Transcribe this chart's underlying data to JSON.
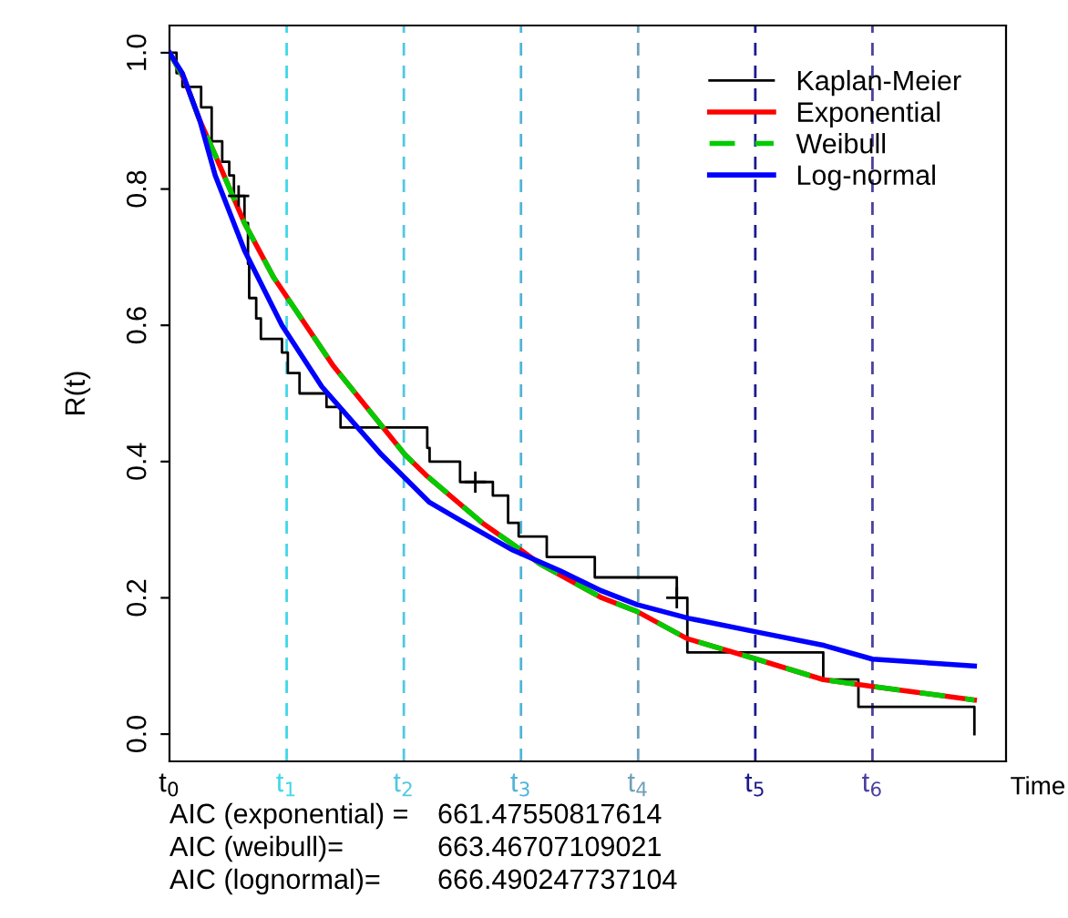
{
  "chart_data": {
    "type": "line",
    "ylabel": "R(t)",
    "xlabel": "Time",
    "xlim": [
      0,
      7.14
    ],
    "ylim": [
      -0.04,
      1.04
    ],
    "xticks": [
      {
        "value": 0,
        "label": "t$_{0}$"
      },
      {
        "value": 1,
        "label": "t$_{1}$"
      },
      {
        "value": 2,
        "label": "t$_{2}$"
      },
      {
        "value": 3,
        "label": "t$_{3}$"
      },
      {
        "value": 4,
        "label": "t$_{4}$"
      },
      {
        "value": 5,
        "label": "t$_{5}$"
      },
      {
        "value": 6,
        "label": "t$_{6}$"
      }
    ],
    "yticks": [
      {
        "value": 0,
        "label": "0.0"
      },
      0.2,
      0.4,
      0.6,
      0.8,
      {
        "value": 1,
        "label": "1.0"
      }
    ],
    "legend": "top right",
    "grid": false,
    "series": [
      {
        "name": "Kaplan-Meier",
        "type": "step",
        "color": "#000000",
        "x": [
          0,
          0.06,
          0.11,
          0.27,
          0.36,
          0.45,
          0.51,
          0.55,
          0.64,
          0.67,
          0.68,
          0.74,
          0.78,
          0.96,
          1.01,
          1.11,
          1.34,
          1.46,
          2.2,
          2.22,
          2.48,
          2.76,
          2.89,
          2.98,
          3.22,
          3.63,
          4.33,
          4.42,
          5.58,
          5.88,
          6.87
        ],
        "values": [
          1.0,
          0.97,
          0.95,
          0.92,
          0.87,
          0.84,
          0.82,
          0.79,
          0.75,
          0.69,
          0.64,
          0.61,
          0.58,
          0.56,
          0.53,
          0.5,
          0.48,
          0.45,
          0.42,
          0.4,
          0.37,
          0.35,
          0.31,
          0.29,
          0.26,
          0.23,
          0.2,
          0.12,
          0.08,
          0.04,
          0.0
        ]
      },
      {
        "type": "scatter",
        "marker": "cross",
        "color": "#000000",
        "x": [
          0.59,
          2.61,
          4.33
        ],
        "values": [
          0.79,
          0.37,
          0.2
        ]
      },
      {
        "name": "Exponential",
        "color": "#ff0000",
        "x": [
          0,
          0.13,
          0.26,
          0.39,
          0.64,
          0.89,
          1.4,
          2.01,
          2.19,
          2.67,
          3.0,
          3.16,
          3.69,
          3.99,
          4.42,
          5.01,
          5.58,
          6.0,
          6.87
        ],
        "values": [
          1.0,
          0.96,
          0.9,
          0.85,
          0.75,
          0.67,
          0.54,
          0.41,
          0.38,
          0.31,
          0.27,
          0.25,
          0.2,
          0.18,
          0.14,
          0.11,
          0.08,
          0.07,
          0.05
        ]
      },
      {
        "name": "Weibull",
        "color": "#00cc00",
        "line_style": "dashed",
        "x": [
          0,
          0.13,
          0.26,
          0.39,
          0.64,
          0.89,
          1.4,
          2.01,
          2.19,
          2.67,
          3.0,
          3.16,
          3.69,
          3.99,
          4.42,
          5.01,
          5.58,
          6.0,
          6.87
        ],
        "values": [
          1.0,
          0.96,
          0.9,
          0.85,
          0.75,
          0.67,
          0.54,
          0.41,
          0.38,
          0.31,
          0.27,
          0.25,
          0.2,
          0.18,
          0.14,
          0.11,
          0.08,
          0.07,
          0.05
        ]
      },
      {
        "name": "Log-normal",
        "color": "#0000ff",
        "x": [
          0,
          0.11,
          0.26,
          0.39,
          0.64,
          0.96,
          1.3,
          1.81,
          2.22,
          2.52,
          2.93,
          3.33,
          3.69,
          3.99,
          4.43,
          5.01,
          5.59,
          6.0,
          6.87
        ],
        "values": [
          1.0,
          0.97,
          0.9,
          0.82,
          0.71,
          0.6,
          0.51,
          0.41,
          0.34,
          0.31,
          0.27,
          0.24,
          0.21,
          0.19,
          0.17,
          0.15,
          0.13,
          0.11,
          0.1
        ]
      }
    ],
    "ref_lines": [
      {
        "axis": "x",
        "value": 1,
        "color": "#40d8e8",
        "line_style": "dashed"
      },
      {
        "axis": "x",
        "value": 2,
        "color": "#50c8e0",
        "line_style": "dashed"
      },
      {
        "axis": "x",
        "value": 3,
        "color": "#50b4d8",
        "line_style": "dashed"
      },
      {
        "axis": "x",
        "value": 4,
        "color": "#6fa0b8",
        "line_style": "dashed"
      },
      {
        "axis": "x",
        "value": 5,
        "color": "#1a1a8c",
        "line_style": "dashed"
      },
      {
        "axis": "x",
        "value": 6,
        "color": "#4a40a0",
        "line_style": "dashed"
      }
    ],
    "annotations": [
      "AIC (exponential) = 661.47550817614",
      "AIC (weibull)= 663.46707109021",
      "AIC (lognormal)= 666.490247737104"
    ]
  }
}
